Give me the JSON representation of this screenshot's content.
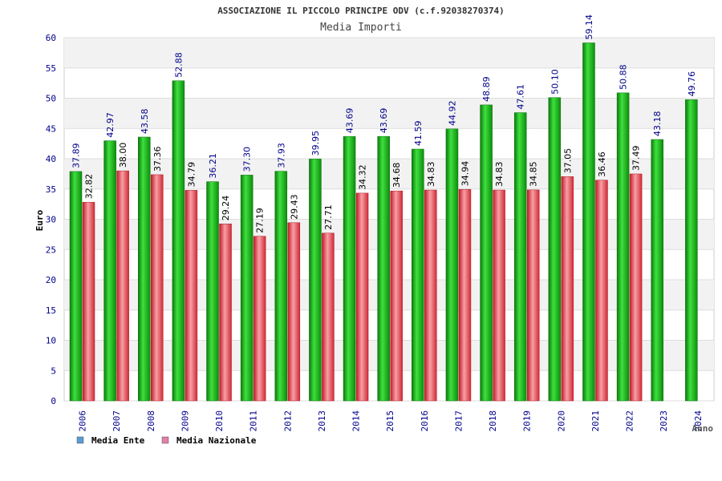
{
  "chart_data": {
    "type": "bar",
    "title": "ASSOCIAZIONE IL PICCOLO PRINCIPE ODV (c.f.92038270374)",
    "subtitle": "Media Importi",
    "xlabel": "Anno",
    "ylabel": "Euro",
    "ylim": [
      0,
      60
    ],
    "yticks": [
      "0",
      "5",
      "10",
      "15",
      "20",
      "25",
      "30",
      "35",
      "40",
      "45",
      "50",
      "55",
      "60"
    ],
    "grid": true,
    "legend_position": "bottom-left",
    "categories": [
      "2006",
      "2007",
      "2008",
      "2009",
      "2010",
      "2011",
      "2012",
      "2013",
      "2014",
      "2015",
      "2016",
      "2017",
      "2018",
      "2019",
      "2020",
      "2021",
      "2022",
      "2023",
      "2024"
    ],
    "series": [
      {
        "name": "Media Ente",
        "color": "#1fae1f",
        "legend_color": "#5b9bd5",
        "values": [
          37.89,
          42.97,
          43.58,
          52.88,
          36.21,
          37.3,
          37.93,
          39.95,
          43.69,
          43.69,
          41.59,
          44.92,
          48.89,
          47.61,
          50.1,
          59.14,
          50.88,
          43.18,
          49.76
        ],
        "labels": [
          "37.89",
          "42.97",
          "43.58",
          "52.88",
          "36.21",
          "37.30",
          "37.93",
          "39.95",
          "43.69",
          "43.69",
          "41.59",
          "44.92",
          "48.89",
          "47.61",
          "50.10",
          "59.14",
          "50.88",
          "43.18",
          "49.76"
        ]
      },
      {
        "name": "Media Nazionale",
        "color": "#e8404a",
        "legend_color": "#e07fa8",
        "values": [
          32.82,
          38.0,
          37.36,
          34.79,
          29.24,
          27.19,
          29.43,
          27.71,
          34.32,
          34.68,
          34.83,
          34.94,
          34.83,
          34.85,
          37.05,
          36.46,
          37.49,
          null,
          null
        ],
        "labels": [
          "32.82",
          "38.00",
          "37.36",
          "34.79",
          "29.24",
          "27.19",
          "29.43",
          "27.71",
          "34.32",
          "34.68",
          "34.83",
          "34.94",
          "34.83",
          "34.85",
          "37.05",
          "36.46",
          "37.49",
          null,
          null
        ]
      }
    ]
  }
}
